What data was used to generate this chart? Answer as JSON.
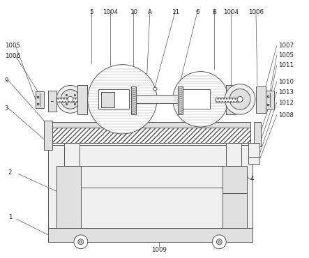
{
  "bg_color": "#ffffff",
  "lc": "#555555",
  "lc2": "#888888",
  "fill_light": "#f0f0f0",
  "fill_mid": "#e0e0e0",
  "fill_dark": "#cccccc",
  "figsize": [
    4.43,
    3.7
  ],
  "dpi": 100
}
